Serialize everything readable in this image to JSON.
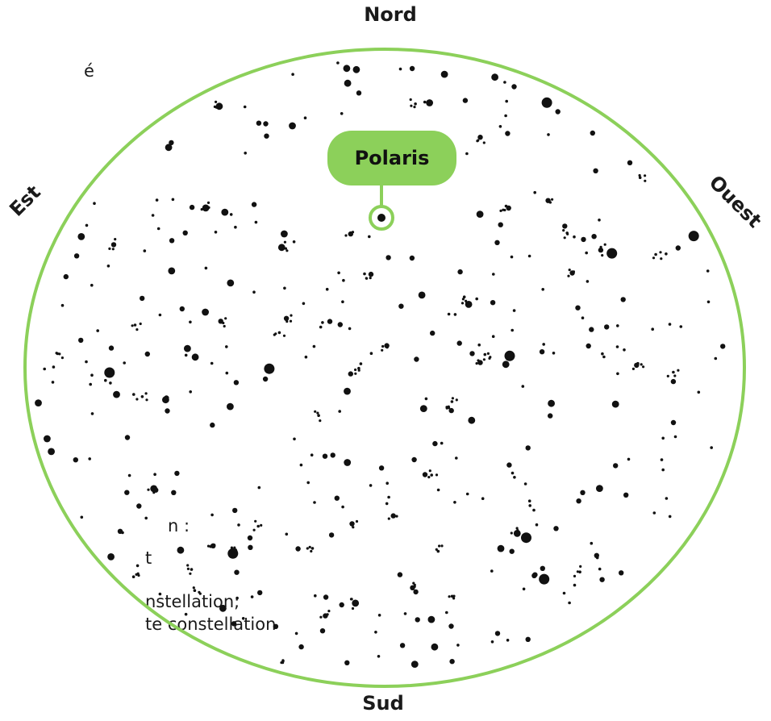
{
  "left_text_fragments": [
    "é",
    "n :",
    "t",
    "nstellation;",
    "te constellation"
  ],
  "directions": {
    "north": "Nord",
    "south": "Sud",
    "east": "Est",
    "west": "Ouest"
  },
  "polaris": {
    "label": "Polaris"
  },
  "colors": {
    "accent": "#8cd05a",
    "star": "#111111",
    "text": "#1a1a1a"
  }
}
